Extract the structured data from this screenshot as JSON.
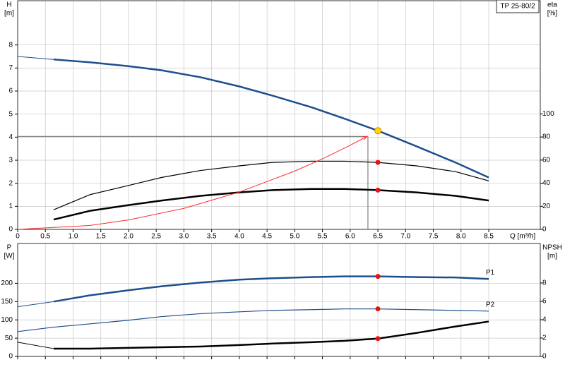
{
  "chart_data": [
    {
      "type": "line",
      "title": "TP 25-80/2",
      "ylabel": [
        "H",
        "[m]"
      ],
      "y2label": [
        "eta",
        "[%]"
      ],
      "xlabel": "Q [m³/h]",
      "xlim": [
        0,
        9.43
      ],
      "ylim": [
        0,
        9.92
      ],
      "y2lim": [
        0,
        198
      ],
      "grid": true,
      "show_xtick_labels": true,
      "xticks": [
        0,
        0.5,
        {
          "value": 1,
          "label": "1.0"
        },
        1.5,
        {
          "value": 2,
          "label": "2.0"
        },
        2.5,
        {
          "value": 3,
          "label": "3.0"
        },
        3.5,
        {
          "value": 4,
          "label": "4.0"
        },
        4.5,
        {
          "value": 5,
          "label": "5.0"
        },
        5.5,
        {
          "value": 6,
          "label": "6.0"
        },
        6.5,
        {
          "value": 7,
          "label": "7.0"
        },
        7.5,
        {
          "value": 8,
          "label": "8.0"
        },
        8.5
      ],
      "yticks": [
        0,
        1,
        2,
        3,
        4,
        5,
        6,
        7,
        8
      ],
      "y2ticks": [
        0,
        20,
        40,
        60,
        80,
        100
      ],
      "crosshair": {
        "x": 6.32,
        "y": 4.03,
        "color": "#808080"
      },
      "series": [
        {
          "x": [
            0,
            0.65
          ],
          "values": [
            7.5,
            7.37
          ],
          "color": "#1f4e8c",
          "width": 1
        },
        {
          "x": [
            0.65,
            1.3,
            2.0,
            2.6,
            3.3,
            4.0,
            4.6,
            5.3,
            5.9,
            6.5,
            7.2,
            7.9,
            8.5
          ],
          "values": [
            7.37,
            7.25,
            7.08,
            6.9,
            6.6,
            6.2,
            5.8,
            5.3,
            4.8,
            4.28,
            3.6,
            2.9,
            2.25
          ],
          "color": "#1f4e8c",
          "width": 2.5
        },
        {
          "x": [
            0.65,
            1.3,
            2.0,
            2.6,
            3.3,
            4.0,
            4.6,
            5.3,
            5.9,
            6.5,
            7.2,
            7.9,
            8.5
          ],
          "values": [
            17,
            30,
            38,
            45,
            51,
            55,
            58,
            59,
            59,
            58,
            55,
            50,
            42
          ],
          "color": "#000000",
          "width": 1.2,
          "axis": "y2"
        },
        {
          "x": [
            0.65,
            1.3,
            2.0,
            2.6,
            3.3,
            4.0,
            4.6,
            5.3,
            5.9,
            6.5,
            7.2,
            7.9,
            8.5
          ],
          "values": [
            8.5,
            16,
            21,
            25,
            29,
            32,
            34,
            35,
            35,
            34,
            32,
            29,
            25
          ],
          "color": "#000000",
          "width": 2.5,
          "axis": "y2"
        },
        {
          "x": [
            0,
            1.3,
            2.0,
            3.0,
            4.0,
            5.0,
            5.5,
            6.0,
            6.3
          ],
          "values": [
            0,
            0.17,
            0.41,
            0.91,
            1.62,
            2.53,
            3.06,
            3.65,
            4.03
          ],
          "color": "#ff2a2a",
          "width": 1,
          "arrow": true
        }
      ],
      "points": [
        {
          "x": 6.5,
          "y": 4.28,
          "color": "#ffd700"
        },
        {
          "x": 6.5,
          "y": 58,
          "color": "#e8120f",
          "axis": "y2"
        },
        {
          "x": 6.5,
          "y": 34,
          "color": "#e8120f",
          "axis": "y2"
        }
      ]
    },
    {
      "type": "line",
      "ylabel": [
        "P",
        "[W]"
      ],
      "y2label": [
        "NPSH",
        "[m]"
      ],
      "xlim": [
        0,
        9.43
      ],
      "ylim": [
        0,
        309
      ],
      "y2lim": [
        0,
        12.3
      ],
      "grid": true,
      "show_xtick_labels": false,
      "xticks": [
        0,
        0.5,
        1,
        1.5,
        2,
        2.5,
        3,
        3.5,
        4,
        4.5,
        5,
        5.5,
        6,
        6.5,
        7,
        7.5,
        8,
        8.5
      ],
      "yticks": [
        0,
        50,
        100,
        150,
        200
      ],
      "y2ticks": [
        0,
        2,
        4,
        6,
        8
      ],
      "series": [
        {
          "x": [
            0,
            0.65
          ],
          "values": [
            136,
            150
          ],
          "color": "#1f4e8c",
          "width": 1
        },
        {
          "name": "P1",
          "x": [
            0.65,
            1.3,
            2.0,
            2.6,
            3.3,
            4.0,
            4.6,
            5.3,
            5.9,
            6.5,
            7.2,
            7.9,
            8.5
          ],
          "values": [
            150,
            167,
            181,
            192,
            202,
            210,
            214,
            217,
            219,
            219,
            217,
            216,
            212
          ],
          "color": "#1f4e8c",
          "width": 2.5
        },
        {
          "name": "P2",
          "x": [
            0,
            0.65,
            1.3,
            2.0,
            2.6,
            3.3,
            4.0,
            4.6,
            5.3,
            5.9,
            6.5,
            7.2,
            7.9,
            8.5
          ],
          "values": [
            68,
            80,
            89,
            99,
            109,
            117,
            122,
            126,
            128,
            130,
            130,
            128,
            126,
            124
          ],
          "color": "#1f4e8c",
          "width": 1.2
        },
        {
          "x": [
            0,
            0.65
          ],
          "values": [
            1.55,
            0.85
          ],
          "color": "#000000",
          "width": 1,
          "axis": "y2"
        },
        {
          "x": [
            0.65,
            1.3,
            2.0,
            2.6,
            3.3,
            4.0,
            4.6,
            5.3,
            5.9,
            6.5,
            7.2,
            7.9,
            8.5
          ],
          "values": [
            0.85,
            0.85,
            0.93,
            1.0,
            1.08,
            1.24,
            1.4,
            1.55,
            1.7,
            1.94,
            2.56,
            3.26,
            3.8
          ],
          "color": "#000000",
          "width": 2.5,
          "axis": "y2"
        }
      ],
      "points": [
        {
          "x": 6.5,
          "y": 219,
          "color": "#e8120f"
        },
        {
          "x": 6.5,
          "y": 130,
          "color": "#e8120f"
        },
        {
          "x": 6.5,
          "y": 1.94,
          "color": "#e8120f",
          "axis": "y2"
        }
      ]
    }
  ]
}
